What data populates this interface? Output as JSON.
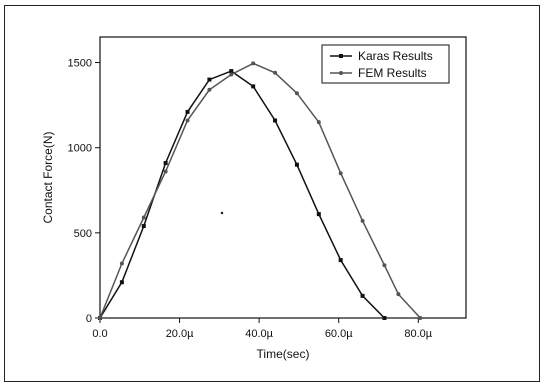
{
  "chart_data": {
    "type": "line",
    "title": "",
    "xlabel": "Time(sec)",
    "ylabel": "Contact Force(N)",
    "xlim": [
      0,
      9.2e-05
    ],
    "ylim": [
      0,
      1650
    ],
    "x_ticks": [
      {
        "value": 0,
        "label": "0.0"
      },
      {
        "value": 2e-05,
        "label": "20.0µ"
      },
      {
        "value": 4e-05,
        "label": "40.0µ"
      },
      {
        "value": 6e-05,
        "label": "60.0µ"
      },
      {
        "value": 8e-05,
        "label": "80.0µ"
      }
    ],
    "y_ticks": [
      {
        "value": 0,
        "label": "0"
      },
      {
        "value": 500,
        "label": "500"
      },
      {
        "value": 1000,
        "label": "1000"
      },
      {
        "value": 1500,
        "label": "1500"
      }
    ],
    "legend_position": "top-right",
    "series": [
      {
        "name": "Karas Results",
        "color": "#111111",
        "marker": "square",
        "points": [
          [
            0,
            0
          ],
          [
            5.5e-06,
            210
          ],
          [
            1.1e-05,
            540
          ],
          [
            1.65e-05,
            910
          ],
          [
            2.2e-05,
            1210
          ],
          [
            2.75e-05,
            1400
          ],
          [
            3.3e-05,
            1450
          ],
          [
            3.85e-05,
            1360
          ],
          [
            4.4e-05,
            1160
          ],
          [
            4.95e-05,
            900
          ],
          [
            5.5e-05,
            610
          ],
          [
            6.05e-05,
            340
          ],
          [
            6.6e-05,
            130
          ],
          [
            7.15e-05,
            0
          ]
        ]
      },
      {
        "name": "FEM Results",
        "color": "#555555",
        "marker": "circle",
        "points": [
          [
            0,
            0
          ],
          [
            5.5e-06,
            320
          ],
          [
            1.1e-05,
            590
          ],
          [
            1.65e-05,
            860
          ],
          [
            2.2e-05,
            1160
          ],
          [
            2.75e-05,
            1340
          ],
          [
            3.3e-05,
            1430
          ],
          [
            3.85e-05,
            1495
          ],
          [
            4.4e-05,
            1440
          ],
          [
            4.95e-05,
            1320
          ],
          [
            5.5e-05,
            1150
          ],
          [
            6.05e-05,
            850
          ],
          [
            6.6e-05,
            570
          ],
          [
            7.15e-05,
            310
          ],
          [
            7.5e-05,
            140
          ],
          [
            8.05e-05,
            0
          ]
        ]
      }
    ]
  }
}
